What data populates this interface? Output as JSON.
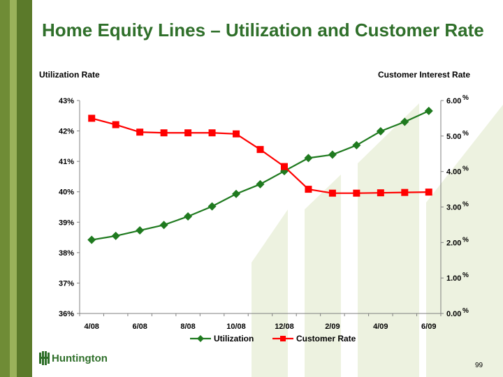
{
  "slide": {
    "title": "Home Equity Lines – Utilization and Customer Rate",
    "left_axis_title": "Utilization Rate",
    "right_axis_title": "Customer Interest Rate",
    "brand": "Huntington",
    "page_number": "99"
  },
  "colors": {
    "utilization": "#1f7a1f",
    "customer_rate": "#ff0000",
    "title": "#2f6f2a",
    "decor": "#e8efd8"
  },
  "chart_data": {
    "type": "line",
    "x": [
      "4/08",
      "5/08",
      "6/08",
      "7/08",
      "8/08",
      "9/08",
      "10/08",
      "11/08",
      "12/08",
      "1/09",
      "2/09",
      "3/09",
      "4/09",
      "5/09",
      "6/09"
    ],
    "x_tick_labels": [
      "4/08",
      "",
      "6/08",
      "",
      "8/08",
      "",
      "10/08",
      "",
      "12/08",
      "",
      "2/09",
      "",
      "4/09",
      "",
      "6/09"
    ],
    "series": [
      {
        "name": "Utilization",
        "axis": "left",
        "marker": "diamond",
        "values": [
          38.42,
          38.55,
          38.73,
          38.91,
          39.19,
          39.52,
          39.93,
          40.25,
          40.68,
          41.11,
          41.22,
          41.53,
          41.99,
          42.3,
          42.66
        ]
      },
      {
        "name": "Customer Rate",
        "axis": "right",
        "marker": "square",
        "values": [
          5.5,
          5.32,
          5.11,
          5.09,
          5.09,
          5.09,
          5.06,
          4.62,
          4.14,
          3.5,
          3.39,
          3.39,
          3.4,
          3.41,
          3.42
        ]
      }
    ],
    "left_axis": {
      "ylim": [
        36,
        43
      ],
      "ticks": [
        "36%",
        "37%",
        "38%",
        "39%",
        "40%",
        "41%",
        "42%",
        "43%"
      ]
    },
    "right_axis": {
      "ylim": [
        0,
        6
      ],
      "ticks": [
        "0.00",
        "1.00",
        "2.00",
        "3.00",
        "4.00",
        "5.00",
        "6.00"
      ],
      "suffix": "%"
    },
    "legend": {
      "placement": "bottom",
      "items": [
        "Utilization",
        "Customer Rate"
      ]
    },
    "grid": false
  }
}
